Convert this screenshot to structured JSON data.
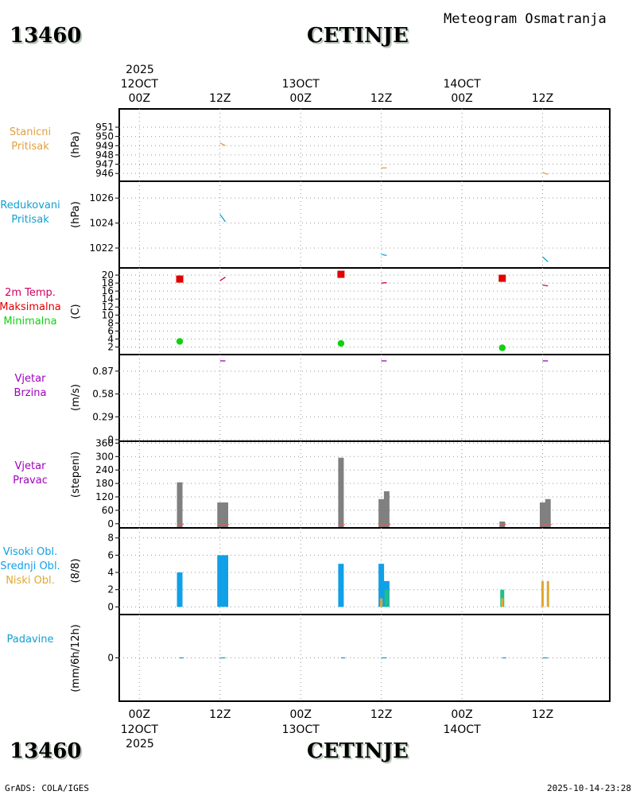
{
  "header": {
    "station_id": "13460",
    "station_name": "CETINJE",
    "title": "Meteogram Osmatranja",
    "year": "2025"
  },
  "footer": {
    "credit": "GrADS: COLA/IGES",
    "timestamp": "2025-10-14-23:28"
  },
  "time_axis": {
    "hours": [
      "00Z",
      "12Z",
      "00Z",
      "12Z",
      "00Z",
      "12Z"
    ],
    "dates": [
      "12OCT",
      "",
      "13OCT",
      "",
      "14OCT",
      ""
    ],
    "hour_offsets": [
      0,
      12,
      24,
      36,
      48,
      60
    ],
    "range_hours": [
      -3,
      70
    ]
  },
  "colors": {
    "station_pressure": "#e0a040",
    "reduced_pressure": "#10a0d0",
    "temp_label": "#d00060",
    "max_temp": "#e00000",
    "min_temp": "#10d010",
    "wind": "#a000c0",
    "wind_dir_bar": "#808080",
    "high_cloud": "#10a0e8",
    "mid_cloud": "#20c080",
    "low_cloud": "#e0a830",
    "precip": "#10a0d0"
  },
  "chart_data": [
    {
      "id": "station_pressure",
      "type": "line",
      "labels": [
        "Stanicni",
        "Pritisak"
      ],
      "ylabel": "(hPa)",
      "yticks": [
        946,
        947,
        948,
        949,
        950,
        951
      ],
      "ylim": [
        945.5,
        951.6
      ],
      "segments": [
        {
          "x": [
            12,
            12.8
          ],
          "y": [
            949.3,
            949.0
          ]
        },
        {
          "x": [
            36,
            36.8
          ],
          "y": [
            946.6,
            946.6
          ]
        },
        {
          "x": [
            60,
            60.8
          ],
          "y": [
            946.1,
            945.9
          ]
        }
      ]
    },
    {
      "id": "reduced_pressure",
      "type": "line",
      "labels": [
        "Redukovani",
        "Pritisak"
      ],
      "ylabel": "(hPa)",
      "yticks": [
        1022,
        1024,
        1026
      ],
      "ylim": [
        1020.6,
        1026.9
      ],
      "segments": [
        {
          "x": [
            12,
            12.8
          ],
          "y": [
            1024.7,
            1024.1
          ]
        },
        {
          "x": [
            36,
            36.8
          ],
          "y": [
            1021.5,
            1021.4
          ]
        },
        {
          "x": [
            60,
            60.8
          ],
          "y": [
            1021.3,
            1020.9
          ]
        }
      ]
    },
    {
      "id": "temperature",
      "type": "line",
      "labels": [
        "2m Temp.",
        "Maksimalna",
        "Minimalna"
      ],
      "ylabel": "(C)",
      "yticks": [
        2,
        4,
        6,
        8,
        10,
        12,
        14,
        16,
        18,
        20
      ],
      "ylim": [
        0.5,
        21
      ],
      "segments": [
        {
          "x": [
            12,
            12.8
          ],
          "y": [
            18.6,
            19.5
          ]
        },
        {
          "x": [
            36,
            36.8
          ],
          "y": [
            18.0,
            18.1
          ]
        },
        {
          "x": [
            60,
            60.8
          ],
          "y": [
            17.5,
            17.3
          ]
        }
      ],
      "max_temp": {
        "x": [
          6,
          30,
          54
        ],
        "y": [
          19.0,
          20.2,
          19.2
        ]
      },
      "min_temp": {
        "x": [
          6,
          30,
          54
        ],
        "y": [
          3.4,
          2.9,
          1.8
        ]
      }
    },
    {
      "id": "wind_speed",
      "type": "line",
      "labels": [
        "Vjetar",
        "Brzina"
      ],
      "ylabel": "(m/s)",
      "yticks": [
        0,
        0.29,
        0.58,
        0.87
      ],
      "ylim": [
        0,
        1.05
      ],
      "segments": [
        {
          "x": [
            12,
            12.8
          ],
          "y": [
            1.0,
            1.0
          ]
        },
        {
          "x": [
            36,
            36.8
          ],
          "y": [
            1.0,
            1.0
          ]
        },
        {
          "x": [
            60,
            60.8
          ],
          "y": [
            1.0,
            1.0
          ]
        }
      ]
    },
    {
      "id": "wind_direction",
      "type": "bar",
      "labels": [
        "Vjetar",
        "Pravac"
      ],
      "ylabel": "(stepeni)",
      "yticks": [
        0,
        60,
        120,
        180,
        240,
        300,
        360
      ],
      "ylim": [
        -15,
        365
      ],
      "bars": [
        {
          "x": 6,
          "value": 185
        },
        {
          "x": 12,
          "value": 95
        },
        {
          "x": 12.8,
          "value": 95
        },
        {
          "x": 30,
          "value": 295
        },
        {
          "x": 36,
          "value": 110
        },
        {
          "x": 36.8,
          "value": 145
        },
        {
          "x": 54,
          "value": 10
        },
        {
          "x": 60,
          "value": 95
        },
        {
          "x": 60.8,
          "value": 110
        }
      ]
    },
    {
      "id": "cloud_cover",
      "type": "bar",
      "labels": [
        "Visoki Obl.",
        "Srednji Obl.",
        "Niski Obl."
      ],
      "ylabel": "(8/8)",
      "yticks": [
        0,
        2,
        4,
        6,
        8
      ],
      "ylim": [
        -0.7,
        8.8
      ],
      "series": [
        {
          "name": "Visoki Obl.",
          "x": [
            6,
            12,
            12.8,
            30,
            36,
            36.8
          ],
          "values": [
            4,
            6,
            6,
            5,
            5,
            3
          ]
        },
        {
          "name": "Srednji Obl.",
          "x": [
            36.8,
            54
          ],
          "values": [
            2,
            2
          ]
        },
        {
          "name": "Niski Obl.",
          "x": [
            36,
            54,
            60,
            60.8
          ],
          "values": [
            1,
            1,
            3,
            3
          ]
        }
      ]
    },
    {
      "id": "precipitation",
      "type": "line",
      "labels": [
        "Padavine"
      ],
      "ylabel": "(mm/6h/12h)",
      "yticks": [
        0
      ],
      "ylim": [
        -1,
        1
      ],
      "segments": [
        {
          "x": [
            6,
            6.6
          ],
          "y": [
            0,
            0
          ]
        },
        {
          "x": [
            12,
            12.8
          ],
          "y": [
            0,
            0
          ]
        },
        {
          "x": [
            30,
            30.6
          ],
          "y": [
            0,
            0
          ]
        },
        {
          "x": [
            36,
            36.8
          ],
          "y": [
            0,
            0
          ]
        },
        {
          "x": [
            54,
            54.6
          ],
          "y": [
            0,
            0
          ]
        },
        {
          "x": [
            60,
            60.8
          ],
          "y": [
            0,
            0
          ]
        }
      ]
    }
  ]
}
